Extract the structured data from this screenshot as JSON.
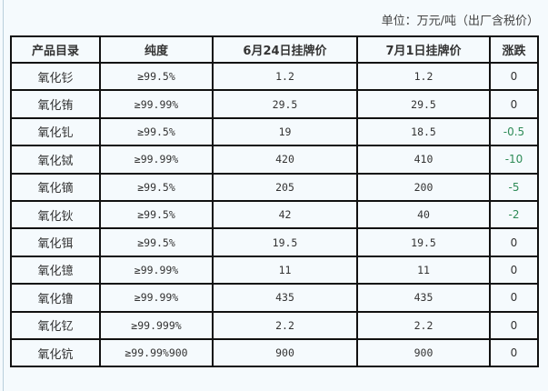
{
  "unit_note": "单位：万元/吨（出厂含税价）",
  "headers": [
    "产品目录",
    "纯度",
    "6月24日挂牌价",
    "7月1日挂牌价",
    "涨跌"
  ],
  "rows": [
    [
      "氧化钐",
      "≥99.5%",
      "1.2",
      "1.2",
      "0"
    ],
    [
      "氧化铕",
      "≥99.99%",
      "29.5",
      "29.5",
      "0"
    ],
    [
      "氧化钆",
      "≥99.5%",
      "19",
      "18.5",
      "-0.5"
    ],
    [
      "氧化铽",
      "≥99.99%",
      "420",
      "410",
      "-10"
    ],
    [
      "氧化镝",
      "≥99.5%",
      "205",
      "200",
      "-5"
    ],
    [
      "氧化钬",
      "≥99.5%",
      "42",
      "40",
      "-2"
    ],
    [
      "氧化铒",
      "≥99.5%",
      "19.5",
      "19.5",
      "0"
    ],
    [
      "氧化镱",
      "≥99.99%",
      "11",
      "11",
      "0"
    ],
    [
      "氧化镥",
      "≥99.99%",
      "435",
      "435",
      "0"
    ],
    [
      "氧化钇",
      "≥99.999%",
      "2.2",
      "2.2",
      "0"
    ],
    [
      "氧化钪",
      "≥99.99%900",
      "900",
      "900",
      "0"
    ]
  ],
  "colors": {
    "negative": "#2e8b57",
    "border": "#111111",
    "background": "#f5fafd"
  }
}
